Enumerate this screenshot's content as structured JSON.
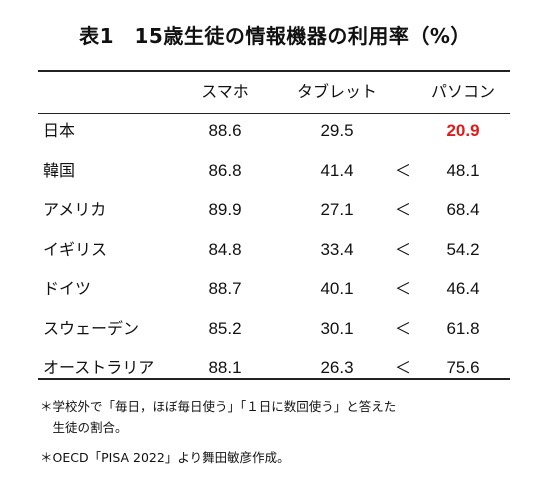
{
  "title": "表1　15歳生徒の情報機器の利用率（%）",
  "headers": {
    "smartphone": "スマホ",
    "tablet": "タブレット",
    "pc": "パソコン"
  },
  "rows": [
    {
      "country": "日本",
      "smartphone": "88.6",
      "tablet": "29.5",
      "lt": "",
      "pc": "20.9",
      "pc_highlight": true
    },
    {
      "country": "韓国",
      "smartphone": "86.8",
      "tablet": "41.4",
      "lt": "＜",
      "pc": "48.1"
    },
    {
      "country": "アメリカ",
      "smartphone": "89.9",
      "tablet": "27.1",
      "lt": "＜",
      "pc": "68.4"
    },
    {
      "country": "イギリス",
      "smartphone": "84.8",
      "tablet": "33.4",
      "lt": "＜",
      "pc": "54.2"
    },
    {
      "country": "ドイツ",
      "smartphone": "88.7",
      "tablet": "40.1",
      "lt": "＜",
      "pc": "46.4"
    },
    {
      "country": "スウェーデン",
      "smartphone": "85.2",
      "tablet": "30.1",
      "lt": "＜",
      "pc": "61.8"
    },
    {
      "country": "オーストラリア",
      "smartphone": "88.1",
      "tablet": "26.3",
      "lt": "＜",
      "pc": "75.6"
    }
  ],
  "notes": {
    "line1": "＊学校外で「毎日，ほぼ毎日使う」「１日に数回使う」と答えた",
    "line2": "　生徒の割合。",
    "line3": "＊OECD「PISA 2022」より舞田敏彦作成。"
  },
  "colors": {
    "highlight": "#e21a1a"
  }
}
